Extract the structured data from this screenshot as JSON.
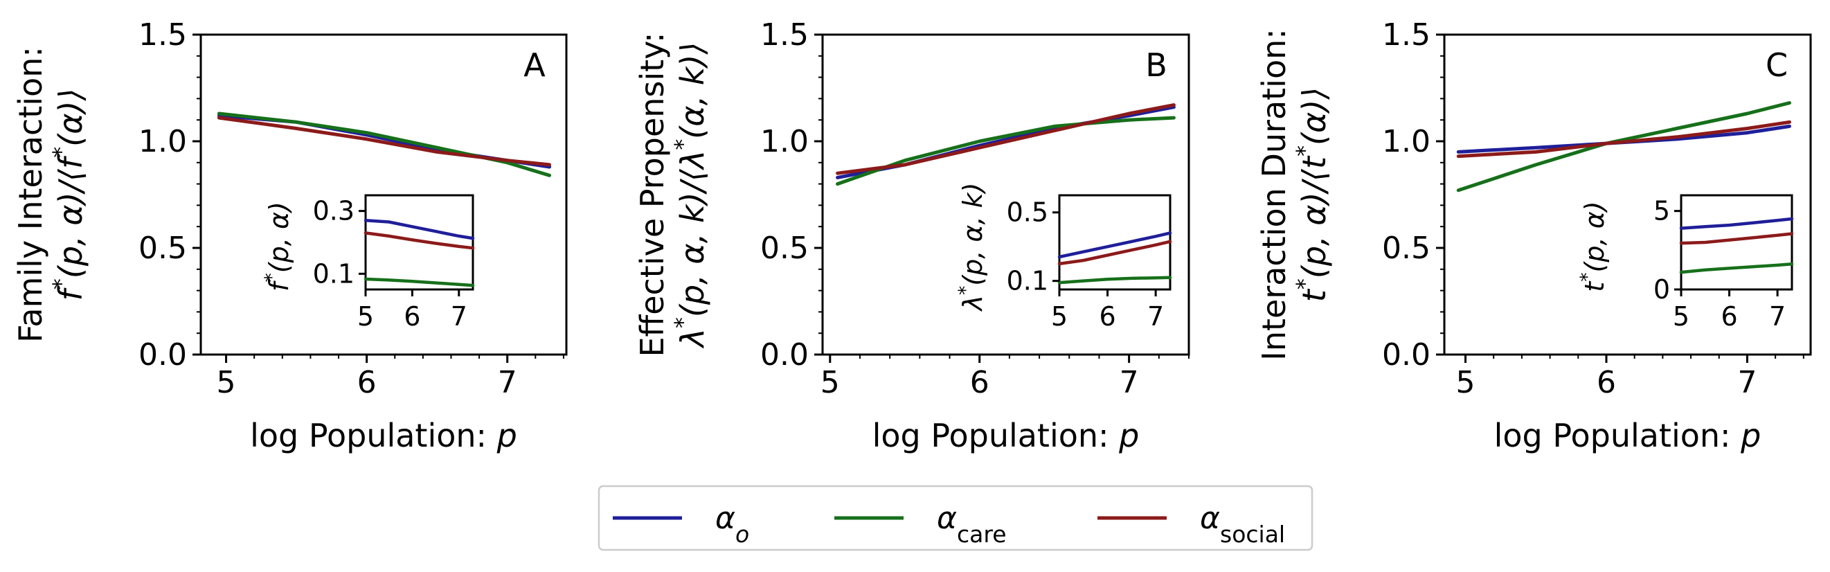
{
  "chart_data": [
    {
      "type": "line",
      "panel": "A",
      "xlabel": "log Population: p",
      "ylabel_line1": "Family Interaction:",
      "ylabel_line2": "f*(p, α)/⟨f*(α)⟩",
      "xlim": [
        4.82,
        7.42
      ],
      "ylim": [
        0.0,
        1.5
      ],
      "xticks": [
        "5",
        "6",
        "7"
      ],
      "yticks": [
        "0.0",
        "0.5",
        "1.0",
        "1.5"
      ],
      "x": [
        4.95,
        5.5,
        6.0,
        6.5,
        7.0,
        7.3
      ],
      "series": [
        {
          "name": "alpha_o",
          "color": "#1f1f9a",
          "values": [
            1.12,
            1.09,
            1.03,
            0.96,
            0.91,
            0.88
          ]
        },
        {
          "name": "alpha_care",
          "color": "#16701a",
          "values": [
            1.13,
            1.09,
            1.04,
            0.97,
            0.9,
            0.84
          ]
        },
        {
          "name": "alpha_social",
          "color": "#8c1a1a",
          "values": [
            1.11,
            1.06,
            1.01,
            0.95,
            0.91,
            0.89
          ]
        }
      ],
      "inset": {
        "ylabel": "f*(p, α)",
        "xlim": [
          5.0,
          7.3
        ],
        "ylim": [
          0.05,
          0.35
        ],
        "xticks": [
          "5",
          "6",
          "7"
        ],
        "yticks": [
          "0.1",
          "0.3"
        ],
        "x": [
          5.0,
          5.5,
          6.0,
          6.5,
          7.0,
          7.3
        ],
        "series": [
          {
            "name": "alpha_o",
            "color": "#1f1f9a",
            "values": [
              0.27,
              0.265,
              0.25,
              0.235,
              0.22,
              0.213
            ]
          },
          {
            "name": "alpha_care",
            "color": "#16701a",
            "values": [
              0.083,
              0.08,
              0.076,
              0.071,
              0.066,
              0.063
            ]
          },
          {
            "name": "alpha_social",
            "color": "#8c1a1a",
            "values": [
              0.23,
              0.22,
              0.208,
              0.197,
              0.187,
              0.182
            ]
          }
        ]
      }
    },
    {
      "type": "line",
      "panel": "B",
      "xlabel": "log Population: p",
      "ylabel_line1": "Effective Propensity:",
      "ylabel_line2": "λ*(p, α, k)/⟨λ*(α, k)⟩",
      "xlim": [
        4.95,
        7.4
      ],
      "ylim": [
        0.0,
        1.5
      ],
      "xticks": [
        "5",
        "6",
        "7"
      ],
      "yticks": [
        "0.0",
        "0.5",
        "1.0",
        "1.5"
      ],
      "x": [
        5.05,
        5.5,
        6.0,
        6.5,
        7.0,
        7.3
      ],
      "series": [
        {
          "name": "alpha_o",
          "color": "#1f1f9a",
          "values": [
            0.83,
            0.89,
            0.98,
            1.06,
            1.12,
            1.16
          ]
        },
        {
          "name": "alpha_care",
          "color": "#16701a",
          "values": [
            0.8,
            0.91,
            1.0,
            1.07,
            1.1,
            1.11
          ]
        },
        {
          "name": "alpha_social",
          "color": "#8c1a1a",
          "values": [
            0.85,
            0.89,
            0.97,
            1.05,
            1.13,
            1.17
          ]
        }
      ],
      "inset": {
        "ylabel": "λ*(p, α, k)",
        "xlim": [
          5.0,
          7.3
        ],
        "ylim": [
          0.05,
          0.6
        ],
        "xticks": [
          "5",
          "6",
          "7"
        ],
        "yticks": [
          "0.1",
          "0.5"
        ],
        "x": [
          5.0,
          5.5,
          6.0,
          6.5,
          7.0,
          7.3
        ],
        "series": [
          {
            "name": "alpha_o",
            "color": "#1f1f9a",
            "values": [
              0.24,
              0.27,
              0.3,
              0.33,
              0.36,
              0.38
            ]
          },
          {
            "name": "alpha_care",
            "color": "#16701a",
            "values": [
              0.09,
              0.1,
              0.11,
              0.115,
              0.118,
              0.12
            ]
          },
          {
            "name": "alpha_social",
            "color": "#8c1a1a",
            "values": [
              0.2,
              0.22,
              0.25,
              0.28,
              0.31,
              0.33
            ]
          }
        ]
      }
    },
    {
      "type": "line",
      "panel": "C",
      "xlabel": "log Population: p",
      "ylabel_line1": "Interaction Duration:",
      "ylabel_line2": "t*(p, α)/⟨t*(α)⟩",
      "xlim": [
        4.85,
        7.45
      ],
      "ylim": [
        0.0,
        1.5
      ],
      "xticks": [
        "5",
        "6",
        "7"
      ],
      "yticks": [
        "0.0",
        "0.5",
        "1.0",
        "1.5"
      ],
      "x": [
        4.95,
        5.5,
        6.0,
        6.5,
        7.0,
        7.3
      ],
      "series": [
        {
          "name": "alpha_o",
          "color": "#1f1f9a",
          "values": [
            0.95,
            0.97,
            0.99,
            1.01,
            1.04,
            1.07
          ]
        },
        {
          "name": "alpha_care",
          "color": "#16701a",
          "values": [
            0.77,
            0.89,
            0.99,
            1.06,
            1.13,
            1.18
          ]
        },
        {
          "name": "alpha_social",
          "color": "#8c1a1a",
          "values": [
            0.93,
            0.95,
            0.99,
            1.02,
            1.06,
            1.09
          ]
        }
      ],
      "inset": {
        "ylabel": "t*(p, α)",
        "xlim": [
          5.0,
          7.3
        ],
        "ylim": [
          0.0,
          6.0
        ],
        "xticks": [
          "5",
          "6",
          "7"
        ],
        "yticks": [
          "0",
          "5"
        ],
        "x": [
          5.0,
          5.5,
          6.0,
          6.5,
          7.0,
          7.3
        ],
        "series": [
          {
            "name": "alpha_o",
            "color": "#1f1f9a",
            "values": [
              3.9,
              4.0,
              4.1,
              4.25,
              4.4,
              4.5
            ]
          },
          {
            "name": "alpha_care",
            "color": "#16701a",
            "values": [
              1.1,
              1.25,
              1.35,
              1.45,
              1.55,
              1.62
            ]
          },
          {
            "name": "alpha_social",
            "color": "#8c1a1a",
            "values": [
              2.95,
              3.0,
              3.15,
              3.3,
              3.45,
              3.55
            ]
          }
        ]
      }
    }
  ],
  "legend": {
    "entries": [
      {
        "symbol": "α",
        "sub": "o",
        "color": "#1f1f9a"
      },
      {
        "symbol": "α",
        "sub": "care",
        "color": "#16701a"
      },
      {
        "symbol": "α",
        "sub": "social",
        "color": "#8c1a1a"
      }
    ]
  }
}
